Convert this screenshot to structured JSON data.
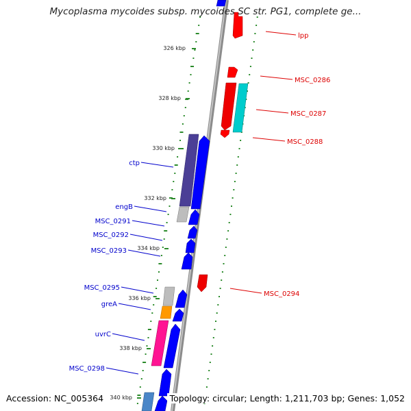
{
  "header": {
    "title": "Mycoplasma mycoides subsp. mycoides SC str. PG1, complete ge..."
  },
  "footer": {
    "accession": "Accession: NC_005364",
    "topology": "Topology: circular; Length: 1,211,703 bp; Genes: 1,052"
  },
  "colors": {
    "forward_gene": "#0000ff",
    "reverse_gene": "#ff0000",
    "forward_label": "#0000cc",
    "reverse_label": "#dd0000",
    "backbone": "#888888",
    "gc_ticks": "#2a8a2a"
  },
  "scale_ticks": [
    "326 kbp",
    "328 kbp",
    "330 kbp",
    "332 kbp",
    "334 kbp",
    "336 kbp",
    "338 kbp",
    "340 kbp"
  ],
  "genes_left": [
    "ctp",
    "engB",
    "MSC_0291",
    "MSC_0292",
    "MSC_0293",
    "MSC_0295",
    "greA",
    "uvrC",
    "MSC_0298"
  ],
  "genes_right": [
    "lpp",
    "MSC_0286",
    "MSC_0287",
    "MSC_0288",
    "MSC_0294"
  ]
}
